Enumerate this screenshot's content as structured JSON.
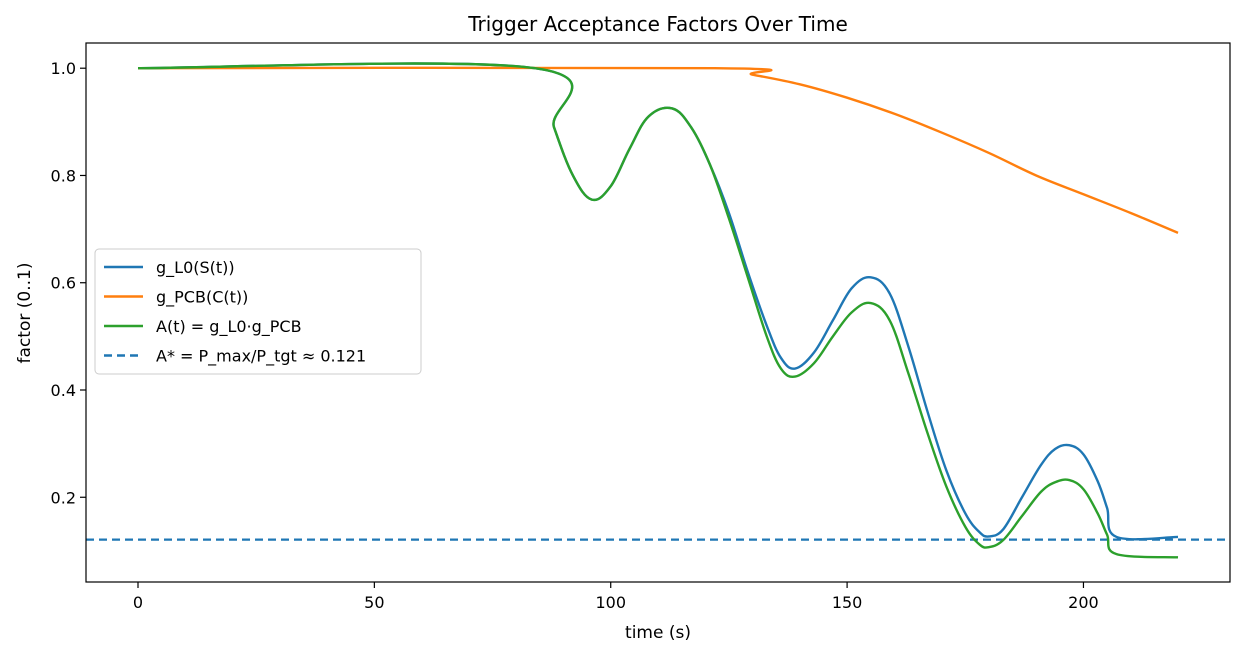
{
  "chart_data": {
    "type": "line",
    "title": "Trigger Acceptance Factors Over Time",
    "xlabel": "time (s)",
    "ylabel": "factor (0..1)",
    "xlim": [
      -11,
      231
    ],
    "ylim": [
      0.042,
      1.047
    ],
    "x_ticks": [
      0,
      50,
      100,
      150,
      200
    ],
    "x_tick_labels": [
      "0",
      "50",
      "100",
      "150",
      "200"
    ],
    "y_ticks": [
      0.2,
      0.4,
      0.6,
      0.8,
      1.0
    ],
    "y_tick_labels": [
      "0.2",
      "0.4",
      "0.6",
      "0.8",
      "1.0"
    ],
    "grid": false,
    "legend_position": "center-left",
    "series": [
      {
        "name": "g_L0(S(t))",
        "color": "#1f77b4",
        "style": "solid",
        "points": [
          [
            0,
            1.0
          ],
          [
            84,
            1.0
          ],
          [
            88,
            0.89
          ],
          [
            92,
            0.8
          ],
          [
            96,
            0.755
          ],
          [
            100,
            0.78
          ],
          [
            104,
            0.85
          ],
          [
            108,
            0.91
          ],
          [
            113,
            0.925
          ],
          [
            117,
            0.89
          ],
          [
            121,
            0.82
          ],
          [
            125,
            0.73
          ],
          [
            129,
            0.62
          ],
          [
            133,
            0.52
          ],
          [
            136,
            0.46
          ],
          [
            139,
            0.44
          ],
          [
            143,
            0.47
          ],
          [
            147,
            0.53
          ],
          [
            151,
            0.59
          ],
          [
            155,
            0.61
          ],
          [
            159,
            0.58
          ],
          [
            163,
            0.48
          ],
          [
            167,
            0.36
          ],
          [
            171,
            0.25
          ],
          [
            175,
            0.17
          ],
          [
            178,
            0.135
          ],
          [
            180,
            0.127
          ],
          [
            183,
            0.14
          ],
          [
            187,
            0.2
          ],
          [
            191,
            0.26
          ],
          [
            194,
            0.29
          ],
          [
            197,
            0.297
          ],
          [
            200,
            0.28
          ],
          [
            203,
            0.23
          ],
          [
            205,
            0.18
          ],
          [
            207,
            0.126
          ],
          [
            220,
            0.126
          ]
        ]
      },
      {
        "name": "g_PCB(C(t))",
        "color": "#ff7f0e",
        "style": "solid",
        "points": [
          [
            0,
            1.0
          ],
          [
            122,
            1.0
          ],
          [
            130,
            0.988
          ],
          [
            140,
            0.97
          ],
          [
            150,
            0.945
          ],
          [
            160,
            0.915
          ],
          [
            170,
            0.88
          ],
          [
            180,
            0.842
          ],
          [
            190,
            0.8
          ],
          [
            200,
            0.765
          ],
          [
            210,
            0.73
          ],
          [
            220,
            0.693
          ]
        ]
      },
      {
        "name": "A(t) = g_L0·g_PCB",
        "color": "#2ca02c",
        "style": "solid",
        "points": [
          [
            0,
            1.0
          ],
          [
            84,
            1.0
          ],
          [
            88,
            0.89
          ],
          [
            92,
            0.8
          ],
          [
            96,
            0.755
          ],
          [
            100,
            0.78
          ],
          [
            104,
            0.85
          ],
          [
            108,
            0.91
          ],
          [
            113,
            0.925
          ],
          [
            117,
            0.89
          ],
          [
            121,
            0.82
          ],
          [
            125,
            0.72
          ],
          [
            129,
            0.61
          ],
          [
            133,
            0.5
          ],
          [
            136,
            0.44
          ],
          [
            139,
            0.425
          ],
          [
            143,
            0.45
          ],
          [
            147,
            0.5
          ],
          [
            151,
            0.545
          ],
          [
            155,
            0.562
          ],
          [
            159,
            0.53
          ],
          [
            163,
            0.43
          ],
          [
            167,
            0.32
          ],
          [
            171,
            0.22
          ],
          [
            175,
            0.145
          ],
          [
            178,
            0.112
          ],
          [
            180,
            0.107
          ],
          [
            183,
            0.12
          ],
          [
            187,
            0.165
          ],
          [
            191,
            0.21
          ],
          [
            194,
            0.228
          ],
          [
            197,
            0.232
          ],
          [
            200,
            0.215
          ],
          [
            203,
            0.17
          ],
          [
            205,
            0.13
          ],
          [
            207,
            0.094
          ],
          [
            220,
            0.088
          ]
        ]
      },
      {
        "name": "A* = P_max/P_tgt ≈ 0.121",
        "color": "#1f77b4",
        "style": "dashed",
        "hline": 0.121
      }
    ]
  }
}
